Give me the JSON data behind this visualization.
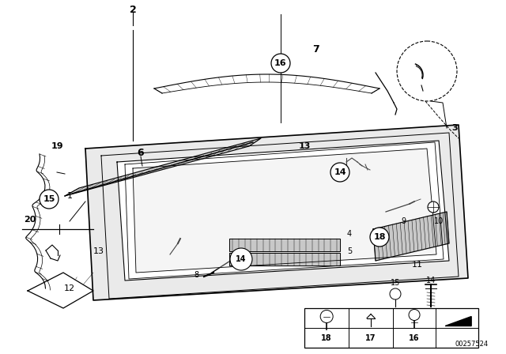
{
  "background_color": "#ffffff",
  "part_number_text": "00257524",
  "fig_width": 6.4,
  "fig_height": 4.48,
  "dpi": 100,
  "line_color": "#000000"
}
